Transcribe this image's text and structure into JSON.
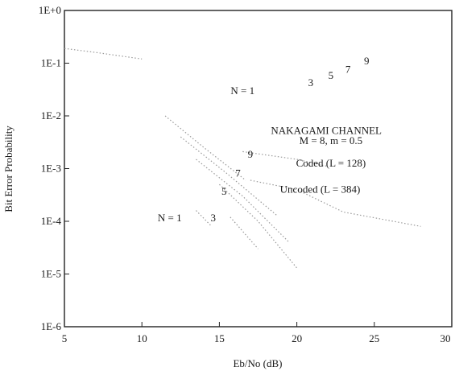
{
  "chart_data": {
    "type": "line",
    "xlabel": "Eb/No (dB)",
    "ylabel": "Bit Error Probability",
    "xlim": [
      5,
      30
    ],
    "ylim_log10": [
      -6,
      0
    ],
    "y_scale": "log",
    "grid": false,
    "x_ticks": [
      "5",
      "10",
      "15",
      "20",
      "25",
      "30"
    ],
    "y_ticks": [
      "1E+0",
      "1E-1",
      "1E-2",
      "1E-3",
      "1E-4",
      "1E-5",
      "1E-6"
    ],
    "line_color": "#9a9a9a",
    "series": [
      {
        "group": "upper",
        "label": "N = 1",
        "x": [
          5,
          7,
          10
        ],
        "y": [
          0.19,
          0.16,
          0.12
        ]
      },
      {
        "group": "upper",
        "label": "3",
        "x": [
          11.5,
          14,
          16.7
        ],
        "y": [
          0.01,
          0.0025,
          0.0006
        ]
      },
      {
        "group": "upper",
        "label": "5",
        "x": [
          12.5,
          15.5,
          18.7
        ],
        "y": [
          0.004,
          0.0008,
          0.00013
        ]
      },
      {
        "group": "upper",
        "label": "7",
        "x": [
          13.5,
          16.5,
          19.5
        ],
        "y": [
          0.0015,
          0.0003,
          4e-05
        ]
      },
      {
        "group": "upper",
        "label": "9",
        "x": [
          15,
          17.5,
          20
        ],
        "y": [
          0.0005,
          0.0001,
          1.3e-05
        ]
      },
      {
        "group": "lower",
        "label": "N = 1",
        "x": [
          13.5,
          14.5
        ],
        "y": [
          0.00016,
          8e-05
        ]
      },
      {
        "group": "lower",
        "label": "3",
        "x": [
          15.7,
          17.5
        ],
        "y": [
          0.00012,
          3e-05
        ]
      },
      {
        "group": "coded",
        "label": "Coded (L = 128)",
        "x": [
          16.5,
          20,
          22
        ],
        "y": [
          0.0021,
          0.0015,
          0.0011
        ]
      },
      {
        "group": "uncoded",
        "label": "Uncoded (L = 384)",
        "x": [
          17,
          20,
          23,
          28
        ],
        "y": [
          0.0006,
          0.0004,
          0.00015,
          8e-05
        ]
      }
    ],
    "annotations": [
      {
        "text": "N = 1",
        "x": 16.5,
        "y": 0.026
      },
      {
        "text": "3",
        "x": 20.9,
        "y": 0.037
      },
      {
        "text": "5",
        "x": 22.2,
        "y": 0.05
      },
      {
        "text": "7",
        "x": 23.3,
        "y": 0.066
      },
      {
        "text": "9",
        "x": 24.5,
        "y": 0.095
      },
      {
        "text": "NAKAGAMI CHANNEL",
        "x": 21.9,
        "y": 0.0045
      },
      {
        "text": "M = 8, m = 0.5",
        "x": 22.2,
        "y": 0.0029
      },
      {
        "text": "Coded (L = 128)",
        "x": 22.2,
        "y": 0.0011
      },
      {
        "text": "Uncoded (L = 384)",
        "x": 21.5,
        "y": 0.00035
      },
      {
        "text": "9",
        "x": 17,
        "y": 0.0016
      },
      {
        "text": "7",
        "x": 16.2,
        "y": 0.0007
      },
      {
        "text": "5",
        "x": 15.3,
        "y": 0.00032
      },
      {
        "text": "N = 1",
        "x": 11.8,
        "y": 0.0001
      },
      {
        "text": "3",
        "x": 14.6,
        "y": 0.0001
      }
    ]
  }
}
